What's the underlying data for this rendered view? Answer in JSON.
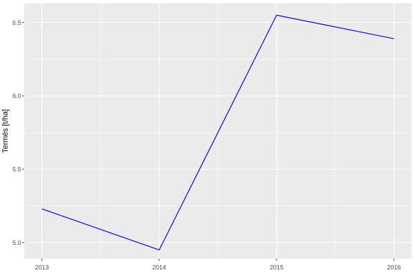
{
  "chart_data": {
    "type": "line",
    "x": [
      2013,
      2014,
      2015,
      2016
    ],
    "series": [
      {
        "name": "termes",
        "color": "#0000FF",
        "values": [
          5.23,
          4.95,
          6.55,
          6.39
        ]
      }
    ],
    "title": "",
    "xlabel": "",
    "ylabel": "Termés [t/ha]",
    "xlim": [
      2012.85,
      2016.15
    ],
    "ylim": [
      4.89,
      6.63
    ],
    "x_ticks": [
      2013,
      2014,
      2015,
      2016
    ],
    "x_tick_labels": [
      "2013",
      "2014",
      "2015",
      "2016"
    ],
    "y_ticks": [
      5.0,
      5.5,
      6.0,
      6.5
    ],
    "y_tick_labels": [
      "5.0",
      "5.5",
      "6.0",
      "6.5"
    ],
    "grid": "major+minor",
    "legend": "none",
    "theme": {
      "background": "#FFFFFF",
      "panel_background": "#EBEBEB",
      "grid_major_color": "#FFFFFF",
      "grid_minor_color": "#FFFFFF",
      "axis_text_color": "#4D4D4D",
      "tick_mark_color": "#333333",
      "axis_title_color": "#000000",
      "line_width": 1.2,
      "grid_major_width": 1.05,
      "grid_minor_width": 0.5,
      "tick_length": 2.7
    }
  }
}
